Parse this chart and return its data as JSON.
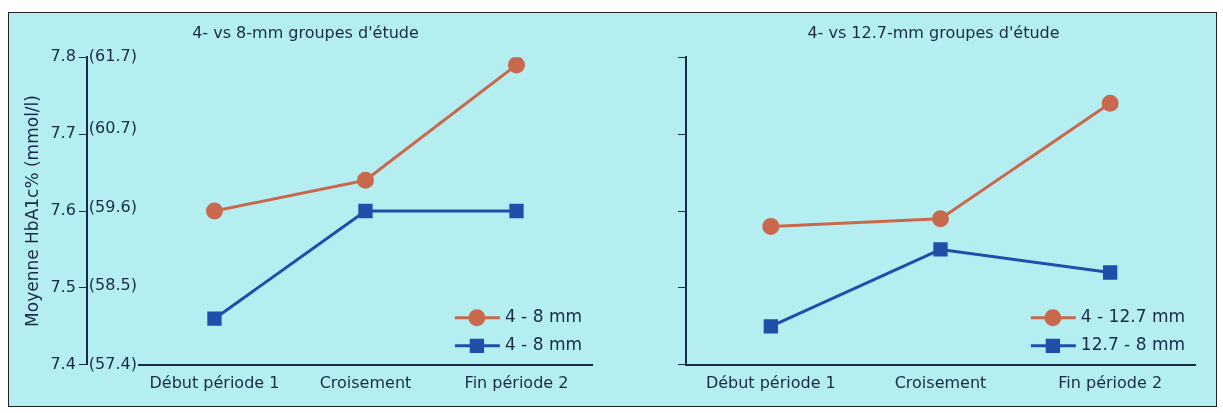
{
  "chart_data": [
    {
      "type": "line",
      "title": "4- vs 8-mm groupes d'étude",
      "ylabel": "Moyenne HbA1c% (mmol/l)",
      "categories": [
        "Début période 1",
        "Croisement",
        "Fin période 2"
      ],
      "series": [
        {
          "name": "4 - 8 mm",
          "color": "#c8694e",
          "marker": "circle",
          "values": [
            7.6,
            7.64,
            7.79
          ]
        },
        {
          "name": "4 - 8 mm",
          "color": "#1f4fa8",
          "marker": "square",
          "values": [
            7.46,
            7.6,
            7.6
          ]
        }
      ],
      "ylim": [
        7.4,
        7.8
      ],
      "yticks": [
        7.4,
        7.5,
        7.6,
        7.7,
        7.8
      ],
      "y2lim": [
        57.4,
        61.7
      ],
      "y2ticks": [
        {
          "value": 57.4,
          "label": "(57.4)"
        },
        {
          "value": 58.5,
          "label": "(58.5)"
        },
        {
          "value": 59.6,
          "label": "(59.6)"
        },
        {
          "value": 60.7,
          "label": "(60.7)"
        },
        {
          "value": 61.7,
          "label": "(61.7)"
        }
      ],
      "grid": false,
      "legend": "bottom right"
    },
    {
      "type": "line",
      "title": "4- vs 12.7-mm groupes d'étude",
      "categories": [
        "Début période 1",
        "Croisement",
        "Fin période 2"
      ],
      "series": [
        {
          "name": "4 - 12.7 mm",
          "color": "#c8694e",
          "marker": "circle",
          "values": [
            7.58,
            7.59,
            7.74
          ]
        },
        {
          "name": "12.7 - 8 mm",
          "color": "#1f4fa8",
          "marker": "square",
          "values": [
            7.45,
            7.55,
            7.52
          ]
        }
      ],
      "ylim": [
        7.4,
        7.8
      ],
      "yticks": [
        7.4,
        7.5,
        7.6,
        7.7,
        7.8
      ],
      "tick_labels": "x",
      "grid": false,
      "legend": "bottom right"
    }
  ]
}
